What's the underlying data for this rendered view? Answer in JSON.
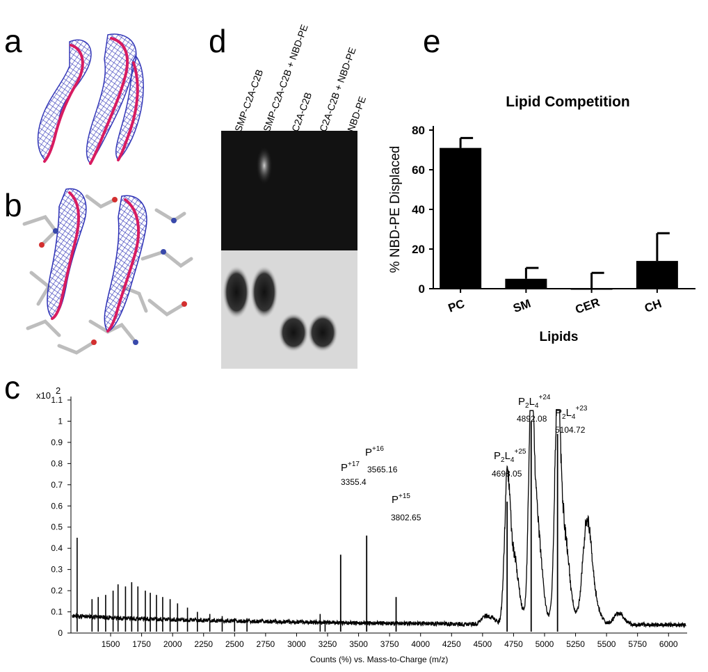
{
  "panel_labels": {
    "a": "a",
    "b": "b",
    "c": "c",
    "d": "d",
    "e": "e"
  },
  "gel": {
    "lanes": [
      "SMP-C2A-C2B",
      "SMP-C2A-C2B + NBD-PE",
      "C2A-C2B",
      "C2A-C2B + NBD-PE",
      "NBD-PE"
    ]
  },
  "chart_data": [
    {
      "type": "bar",
      "title": "Lipid Competition",
      "xlabel": "Lipids",
      "ylabel": "% NBD-PE Displaced",
      "categories": [
        "PC",
        "SM",
        "CER",
        "CH"
      ],
      "values": [
        71,
        5,
        0,
        14
      ],
      "errors": [
        5,
        5.5,
        8,
        14
      ],
      "ylim": [
        0,
        80
      ],
      "yticks": [
        0,
        20,
        40,
        60,
        80
      ],
      "bar_color": "#000000"
    },
    {
      "type": "line",
      "title": "",
      "xlabel": "Counts (%) vs. Mass-to-Charge (m/z)",
      "ylabel": "",
      "y_multiplier": "x10",
      "y_multiplier_exp": "2",
      "xlim": [
        1180,
        6150
      ],
      "ylim": [
        0,
        1.1
      ],
      "xticks": [
        1500,
        1750,
        2000,
        2250,
        2500,
        2750,
        3000,
        3250,
        3500,
        3750,
        4000,
        4250,
        4500,
        4750,
        5000,
        5250,
        5500,
        5750,
        6000
      ],
      "yticks": [
        0,
        0.1,
        0.2,
        0.3,
        0.4,
        0.5,
        0.6,
        0.7,
        0.8,
        0.9,
        1,
        1.1
      ],
      "peaks": [
        {
          "mz": 3355.4,
          "intensity": 0.37,
          "ion": "P",
          "sub": "",
          "mid": "",
          "charge": "+17",
          "value": "3355.4"
        },
        {
          "mz": 3565.16,
          "intensity": 0.46,
          "ion": "P",
          "sub": "",
          "mid": "",
          "charge": "+16",
          "value": "3565.16"
        },
        {
          "mz": 3802.65,
          "intensity": 0.17,
          "ion": "P",
          "sub": "",
          "mid": "",
          "charge": "+15",
          "value": "3802.65"
        },
        {
          "mz": 4698.05,
          "intensity": 0.62,
          "ion": "P",
          "sub": "2",
          "mid": "L",
          "sub2": "4",
          "charge": "+25",
          "value": "4698.05"
        },
        {
          "mz": 4892.08,
          "intensity": 1.0,
          "ion": "P",
          "sub": "2",
          "mid": "L",
          "sub2": "4",
          "charge": "+24",
          "value": "4892.08"
        },
        {
          "mz": 5104.72,
          "intensity": 0.94,
          "ion": "P",
          "sub": "2",
          "mid": "L",
          "sub2": "4",
          "charge": "+23",
          "value": "5104.72"
        }
      ]
    }
  ]
}
